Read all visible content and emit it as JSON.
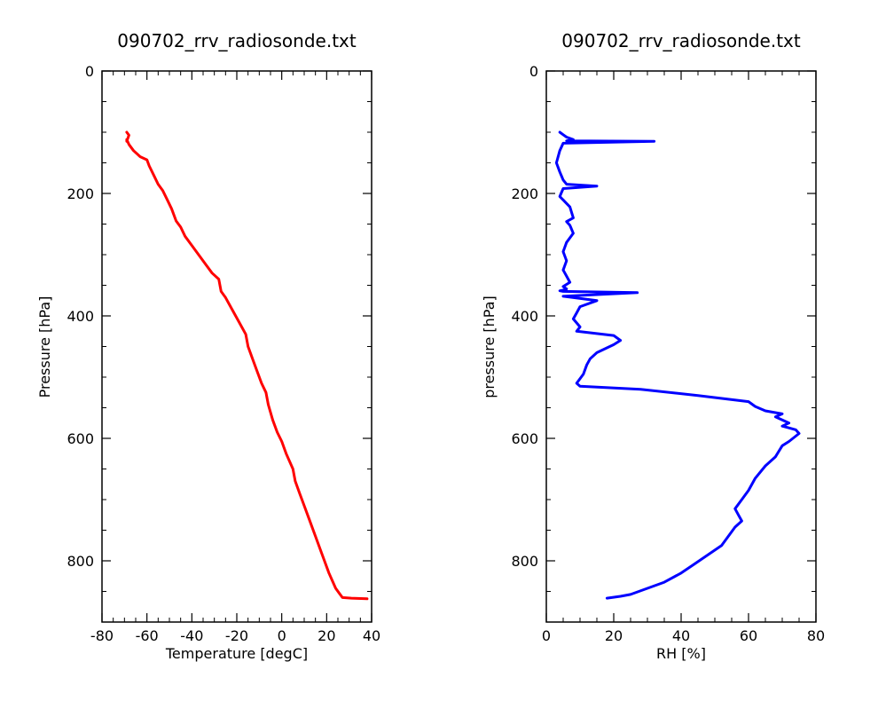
{
  "chart_data": [
    {
      "type": "line",
      "title": "090702_rrv_radiosonde.txt",
      "xlabel": "Temperature [degC]",
      "ylabel": "Pressure [hPa]",
      "xlim": [
        -80,
        40
      ],
      "ylim": [
        900,
        0
      ],
      "y_inverted": true,
      "x_ticks": [
        "-80",
        "-60",
        "-40",
        "-20",
        "0",
        "20",
        "40"
      ],
      "y_ticks": [
        "0",
        "200",
        "400",
        "600",
        "800"
      ],
      "grid": false,
      "color": "#ff0000",
      "series": [
        {
          "x": [
            -69,
            -68,
            -69,
            -69,
            -68,
            -66,
            -63,
            -60,
            -59,
            -57,
            -55,
            -53,
            -51,
            -49,
            -47,
            -45,
            -43,
            -40,
            -37,
            -34,
            -31,
            -28,
            -27,
            -25,
            -22,
            -19,
            -16,
            -15,
            -13,
            -11,
            -9,
            -7,
            -6,
            -4,
            -2,
            0,
            2,
            5,
            6,
            8,
            10,
            12,
            15,
            18,
            21,
            24,
            26,
            27,
            31,
            38
          ],
          "y": [
            100,
            105,
            115,
            112,
            120,
            130,
            140,
            145,
            155,
            170,
            185,
            195,
            210,
            225,
            245,
            255,
            270,
            285,
            300,
            315,
            330,
            340,
            360,
            370,
            390,
            410,
            430,
            450,
            470,
            490,
            510,
            525,
            545,
            570,
            590,
            605,
            625,
            650,
            670,
            690,
            710,
            730,
            760,
            790,
            820,
            845,
            855,
            860,
            861,
            862
          ]
        }
      ]
    },
    {
      "type": "line",
      "title": "090702_rrv_radiosonde.txt",
      "xlabel": "RH [%]",
      "ylabel": "pressure [hPa]",
      "xlim": [
        0,
        80
      ],
      "ylim": [
        900,
        0
      ],
      "y_inverted": true,
      "x_ticks": [
        "0",
        "20",
        "40",
        "60",
        "80"
      ],
      "y_ticks": [
        "0",
        "200",
        "400",
        "600",
        "800"
      ],
      "grid": false,
      "color": "#0000ff",
      "series": [
        {
          "x": [
            4,
            5,
            6,
            8,
            6,
            32,
            5,
            4,
            3,
            4,
            5,
            6,
            15,
            5,
            4,
            7,
            8,
            6,
            7,
            8,
            6,
            5,
            6,
            5,
            6,
            7,
            5,
            6,
            5,
            4,
            5,
            27,
            5,
            15,
            10,
            9,
            8,
            10,
            9,
            20,
            22,
            20,
            15,
            13,
            12,
            11,
            9,
            10,
            28,
            45,
            60,
            62,
            65,
            70,
            68,
            72,
            70,
            74,
            75,
            72,
            70,
            68,
            65,
            62,
            60,
            58,
            56,
            57,
            58,
            56,
            54,
            52,
            48,
            44,
            40,
            35,
            30,
            25,
            22,
            18
          ],
          "y": [
            100,
            104,
            108,
            112,
            114,
            115,
            118,
            130,
            150,
            165,
            178,
            185,
            188,
            192,
            205,
            222,
            240,
            246,
            252,
            265,
            280,
            295,
            310,
            325,
            335,
            345,
            352,
            356,
            358,
            359,
            360,
            362,
            368,
            375,
            385,
            395,
            405,
            418,
            425,
            432,
            440,
            447,
            460,
            470,
            480,
            495,
            510,
            515,
            520,
            530,
            540,
            548,
            555,
            560,
            565,
            575,
            580,
            586,
            592,
            605,
            612,
            630,
            645,
            665,
            685,
            700,
            715,
            725,
            735,
            745,
            760,
            775,
            790,
            805,
            820,
            835,
            845,
            855,
            858,
            861
          ]
        }
      ]
    }
  ]
}
